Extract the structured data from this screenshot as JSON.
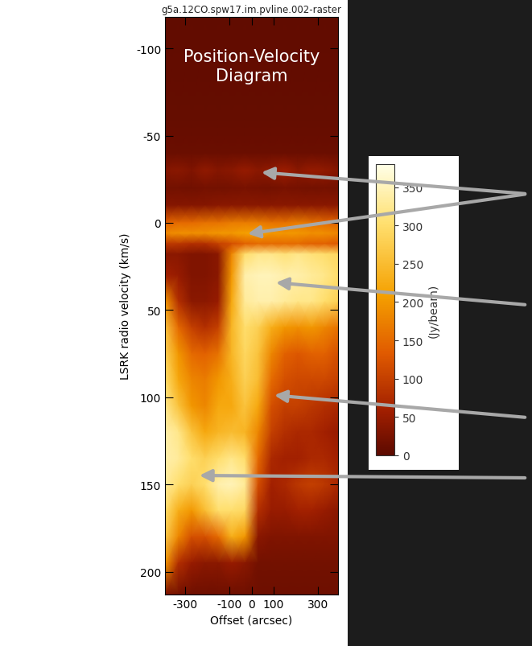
{
  "chart_data": {
    "type": "heatmap",
    "title": "g5a.12CO.spw17.im.pvline.002-raster",
    "annotation": "Position-Velocity\nDiagram",
    "x_label": "Offset (arcsec)",
    "y_label": "LSRK radio velocity (km/s)",
    "xlim": [
      -390,
      390
    ],
    "ylim": [
      213,
      -118
    ],
    "xticks": [
      -300,
      -100,
      0,
      100,
      300
    ],
    "yticks": [
      -100,
      -50,
      0,
      50,
      100,
      150,
      200
    ],
    "x": [
      -390,
      -330,
      -270,
      -210,
      -150,
      -90,
      -30,
      30,
      90,
      150,
      210,
      270,
      330,
      390
    ],
    "y": [
      -118,
      -60,
      -40,
      -30,
      -20,
      -10,
      0,
      6,
      12,
      18,
      30,
      45,
      60,
      75,
      90,
      105,
      120,
      135,
      150,
      165,
      180,
      195,
      213
    ],
    "cells": [
      [
        5,
        5,
        5,
        5,
        5,
        5,
        5,
        5,
        5,
        5,
        5,
        5,
        5,
        5
      ],
      [
        8,
        8,
        8,
        8,
        8,
        8,
        8,
        8,
        8,
        8,
        8,
        8,
        8,
        8
      ],
      [
        12,
        12,
        12,
        12,
        12,
        12,
        12,
        12,
        12,
        12,
        12,
        12,
        12,
        12
      ],
      [
        35,
        40,
        30,
        45,
        35,
        40,
        50,
        40,
        45,
        55,
        40,
        50,
        45,
        35
      ],
      [
        20,
        20,
        18,
        22,
        20,
        22,
        25,
        22,
        20,
        25,
        22,
        20,
        22,
        20
      ],
      [
        35,
        35,
        35,
        35,
        40,
        40,
        40,
        40,
        40,
        40,
        40,
        40,
        40,
        40
      ],
      [
        140,
        150,
        150,
        160,
        160,
        170,
        170,
        170,
        160,
        160,
        170,
        160,
        150,
        140
      ],
      [
        180,
        190,
        190,
        190,
        200,
        200,
        210,
        210,
        200,
        200,
        200,
        190,
        190,
        180
      ],
      [
        90,
        90,
        80,
        80,
        100,
        120,
        140,
        150,
        150,
        150,
        150,
        140,
        140,
        130
      ],
      [
        40,
        40,
        30,
        30,
        40,
        180,
        300,
        320,
        320,
        310,
        320,
        310,
        300,
        290
      ],
      [
        60,
        50,
        30,
        30,
        40,
        200,
        340,
        350,
        350,
        340,
        340,
        330,
        320,
        300
      ],
      [
        200,
        80,
        40,
        40,
        50,
        220,
        330,
        340,
        340,
        330,
        320,
        320,
        300,
        280
      ],
      [
        260,
        150,
        100,
        80,
        100,
        240,
        300,
        280,
        230,
        200,
        190,
        200,
        180,
        160
      ],
      [
        280,
        200,
        150,
        140,
        160,
        240,
        290,
        260,
        180,
        140,
        130,
        140,
        140,
        120
      ],
      [
        300,
        220,
        180,
        170,
        200,
        230,
        280,
        250,
        150,
        120,
        110,
        110,
        110,
        100
      ],
      [
        320,
        260,
        200,
        180,
        220,
        220,
        260,
        220,
        120,
        100,
        100,
        90,
        80,
        70
      ],
      [
        340,
        320,
        260,
        220,
        240,
        250,
        240,
        180,
        100,
        80,
        70,
        70,
        60,
        50
      ],
      [
        340,
        330,
        300,
        280,
        300,
        320,
        300,
        150,
        70,
        60,
        60,
        70,
        70,
        60
      ],
      [
        330,
        300,
        280,
        300,
        340,
        350,
        330,
        120,
        60,
        70,
        90,
        100,
        90,
        70
      ],
      [
        300,
        230,
        200,
        250,
        300,
        300,
        290,
        80,
        50,
        50,
        60,
        60,
        50,
        40
      ],
      [
        270,
        180,
        120,
        120,
        150,
        230,
        200,
        40,
        30,
        30,
        30,
        30,
        30,
        30
      ],
      [
        200,
        80,
        50,
        40,
        40,
        50,
        40,
        20,
        20,
        20,
        20,
        20,
        20,
        20
      ],
      [
        30,
        20,
        15,
        15,
        15,
        15,
        15,
        15,
        15,
        15,
        15,
        15,
        15,
        15
      ]
    ],
    "colorbar": {
      "label": "(Jy/beam)",
      "range": [
        0,
        380
      ],
      "ticks": [
        0,
        50,
        100,
        150,
        200,
        250,
        300,
        350
      ]
    }
  }
}
